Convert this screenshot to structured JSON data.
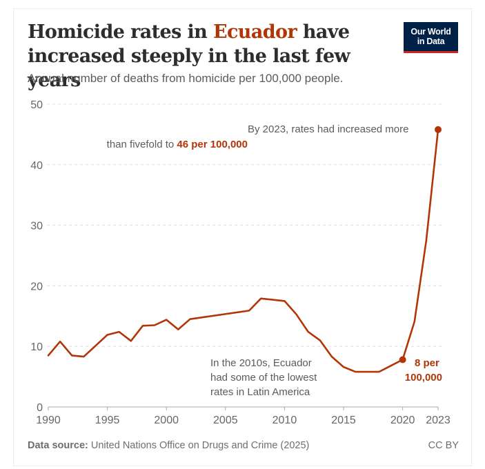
{
  "header": {
    "title_prefix": "Homicide rates in ",
    "title_highlight": "Ecuador",
    "title_suffix": " have increased steeply in the last few years",
    "subtitle": "Annual number of deaths from homicide per 100,000 people.",
    "logo_line1": "Our World",
    "logo_line2": "in Data"
  },
  "footer": {
    "source_label": "Data source:",
    "source_text": " United Nations Office on Drugs and Crime (2025)",
    "license": "CC BY"
  },
  "colors": {
    "line": "#b13507",
    "grid": "#dddddd",
    "axis": "#aaaaaa",
    "logo_bg": "#002147",
    "logo_accent": "#ce261e"
  },
  "chart_data": {
    "type": "line",
    "title": "Homicide rates in Ecuador have increased steeply in the last few years",
    "subtitle": "Annual number of deaths from homicide per 100,000 people.",
    "xlabel": "",
    "ylabel": "",
    "xlim": [
      1990,
      2023
    ],
    "ylim": [
      0,
      50
    ],
    "grid": true,
    "yticks": [
      0,
      10,
      20,
      30,
      40,
      50
    ],
    "xticks": [
      1990,
      1995,
      2000,
      2005,
      2010,
      2015,
      2020,
      2023
    ],
    "series": [
      {
        "name": "Ecuador",
        "x": [
          1990,
          1991,
          1992,
          1993,
          1994,
          1995,
          1996,
          1997,
          1998,
          1999,
          2000,
          2001,
          2002,
          2007,
          2008,
          2010,
          2011,
          2012,
          2013,
          2014,
          2015,
          2016,
          2017,
          2018,
          2019,
          2020,
          2021,
          2022,
          2023
        ],
        "values": [
          8.5,
          10.8,
          8.5,
          8.3,
          10.1,
          11.9,
          12.4,
          10.9,
          13.4,
          13.5,
          14.4,
          12.8,
          14.5,
          15.9,
          17.9,
          17.5,
          15.3,
          12.4,
          11.0,
          8.3,
          6.6,
          5.8,
          5.8,
          5.8,
          6.8,
          7.8,
          14.1,
          27.5,
          45.8
        ]
      }
    ],
    "highlighted_points": [
      {
        "x": 2020,
        "y": 7.8
      },
      {
        "x": 2023,
        "y": 45.8
      }
    ],
    "annotations": [
      {
        "id": "top",
        "lines": [
          "By 2023, rates had increased more",
          "than fivefold to "
        ],
        "highlight": "46 per 100,000"
      },
      {
        "id": "low",
        "lines": [
          "In the 2010s, Ecuador",
          "had some of the lowest",
          "rates in Latin America"
        ]
      },
      {
        "id": "point2020",
        "lines": [
          "8 per",
          "100,000"
        ]
      }
    ]
  }
}
